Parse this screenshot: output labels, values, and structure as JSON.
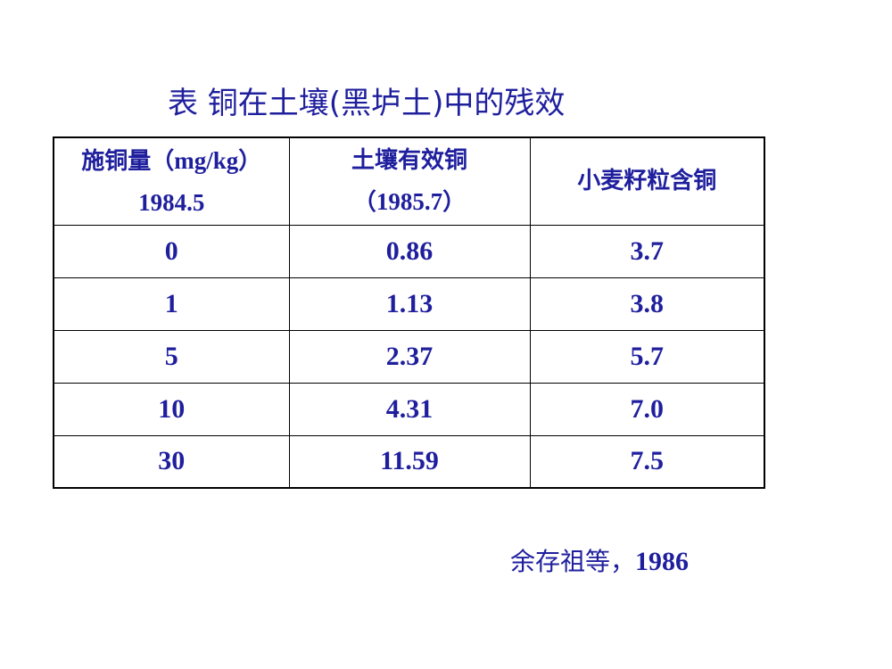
{
  "title": "表 铜在土壤(黑垆土)中的残效",
  "table": {
    "headers": [
      {
        "line1": "施铜量（",
        "line1_unit": "mg/kg",
        "line1_close": "）",
        "line2": "1984.5"
      },
      {
        "line1": "土壤有效铜",
        "line2_open": "（",
        "line2": "1985.7",
        "line2_close": "）"
      },
      {
        "line1": "小麦籽粒含铜"
      }
    ],
    "rows": [
      [
        "0",
        "0.86",
        "3.7"
      ],
      [
        "1",
        "1.13",
        "3.8"
      ],
      [
        "5",
        "2.37",
        "5.7"
      ],
      [
        "10",
        "4.31",
        "7.0"
      ],
      [
        "30",
        "11.59",
        "7.5"
      ]
    ]
  },
  "citation": {
    "author": "余存祖等，",
    "year": "1986"
  },
  "colors": {
    "text": "#1f1f9e",
    "border": "#000000"
  }
}
